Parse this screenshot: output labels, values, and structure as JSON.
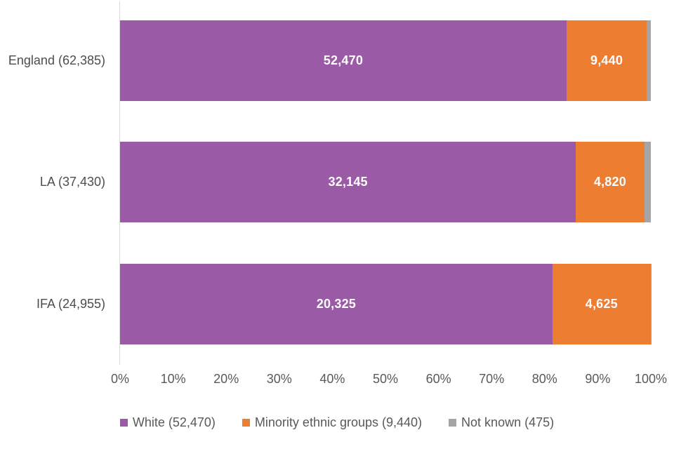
{
  "chart_data": {
    "type": "bar",
    "subtype": "horizontal-stacked",
    "title": "",
    "x_axis": {
      "min": 0,
      "max": 100,
      "ticks": [
        "0%",
        "10%",
        "20%",
        "30%",
        "40%",
        "50%",
        "60%",
        "70%",
        "80%",
        "90%",
        "100%"
      ]
    },
    "rows": [
      {
        "category": "England (62,385)",
        "total": 62385,
        "white_value": 52470,
        "white_label": "52,470",
        "minority_value": 9440,
        "minority_label": "9,440"
      },
      {
        "category": "LA (37,430)",
        "total": 37430,
        "white_value": 32145,
        "white_label": "32,145",
        "minority_value": 4820,
        "minority_label": "4,820"
      },
      {
        "category": "IFA (24,955)",
        "total": 24955,
        "white_value": 20325,
        "white_label": "20,325",
        "minority_value": 4625,
        "minority_label": "4,625"
      }
    ],
    "legend": [
      {
        "label": "White (52,470)",
        "series": "white"
      },
      {
        "label": "Minority ethnic groups (9,440)",
        "series": "minority"
      },
      {
        "label": "Not known (475)",
        "series": "not_known"
      }
    ],
    "colors": {
      "white": "#9B5AA5",
      "minority": "#ED7D31",
      "not_known": "#A5A5A5",
      "axis_line": "#D9D9D9",
      "text": "#595959",
      "bar_label_text": "#FFFFFF"
    },
    "layout": {
      "grid": "off",
      "legend_position": "bottom"
    }
  }
}
